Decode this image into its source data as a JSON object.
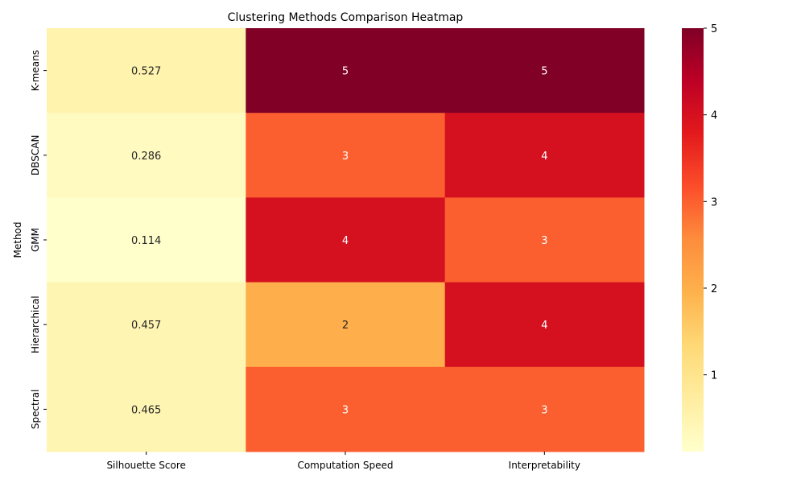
{
  "chart_data": {
    "type": "heatmap",
    "title": "Clustering Methods Comparison Heatmap",
    "ylabel": "Method",
    "xlabel": "",
    "rows": [
      "K-means",
      "DBSCAN",
      "GMM",
      "Hierarchical",
      "Spectral"
    ],
    "columns": [
      "Silhouette Score",
      "Computation Speed",
      "Interpretability"
    ],
    "values": [
      [
        0.527,
        5,
        5
      ],
      [
        0.286,
        3,
        4
      ],
      [
        0.114,
        4,
        3
      ],
      [
        0.457,
        2,
        4
      ],
      [
        0.465,
        3,
        3
      ]
    ],
    "value_labels": [
      [
        "0.527",
        "5",
        "5"
      ],
      [
        "0.286",
        "3",
        "4"
      ],
      [
        "0.114",
        "4",
        "3"
      ],
      [
        "0.457",
        "2",
        "4"
      ],
      [
        "0.465",
        "3",
        "3"
      ]
    ],
    "colormap": "YlOrRd",
    "colorbar": {
      "range": [
        0.114,
        5
      ],
      "ticks": [
        1,
        2,
        3,
        4,
        5
      ],
      "tick_labels": [
        "1",
        "2",
        "3",
        "4",
        "5"
      ]
    },
    "legend": "none",
    "grid": false
  }
}
